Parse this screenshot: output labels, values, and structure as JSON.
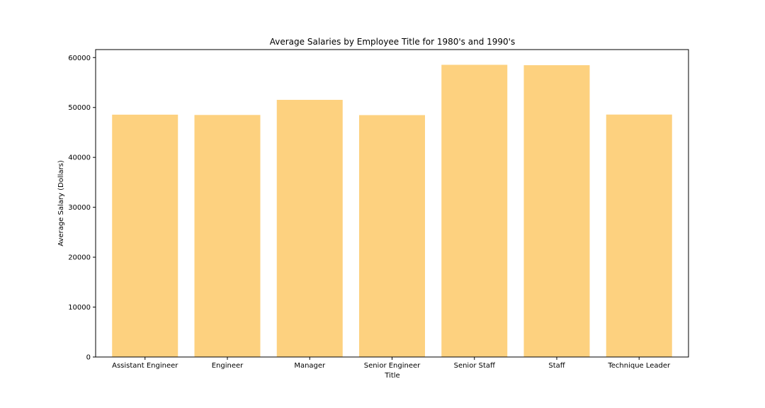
{
  "chart_data": {
    "type": "bar",
    "title": "Average Salaries by Employee Title for 1980's and 1990's",
    "xlabel": "Title",
    "ylabel": "Average Salary (Dollars)",
    "categories": [
      "Assistant Engineer",
      "Engineer",
      "Manager",
      "Senior Engineer",
      "Senior Staff",
      "Staff",
      "Technique Leader"
    ],
    "values": [
      48560,
      48500,
      51530,
      48470,
      58550,
      58470,
      48580
    ],
    "ylim": [
      0,
      61600
    ],
    "yticks": [
      0,
      10000,
      20000,
      30000,
      40000,
      50000,
      60000
    ],
    "bar_color": "#fdd17f",
    "grid": false,
    "legend": "none"
  }
}
